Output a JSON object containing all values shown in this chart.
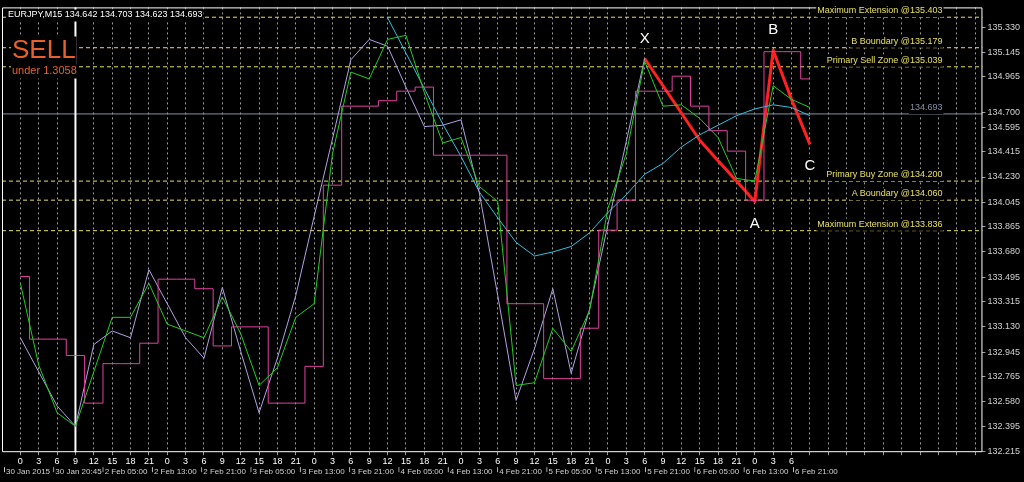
{
  "chart_data": {
    "type": "line",
    "title": "EURJPY,M15 134.642 134.703 134.623 134.693",
    "categories": [
      "0",
      "3",
      "6",
      "9",
      "12",
      "15",
      "18",
      "21",
      "0",
      "3",
      "6",
      "9",
      "12",
      "15",
      "18",
      "21",
      "0",
      "3",
      "6",
      "9",
      "12",
      "15",
      "18",
      "21",
      "0",
      "3",
      "6",
      "9",
      "12",
      "15",
      "18",
      "21",
      "0",
      "3",
      "6",
      "9",
      "12",
      "15",
      "18",
      "21",
      "0",
      "3",
      "6",
      null,
      null,
      null,
      null,
      null,
      null,
      null,
      null,
      null,
      null
    ],
    "ylim": [
      132.21,
      135.475
    ],
    "yticks": [
      {
        "value": 135.33,
        "label": "135.330"
      },
      {
        "value": 135.145,
        "label": "135.145"
      },
      {
        "value": 134.965,
        "label": "134.965"
      },
      {
        "value": 134.7,
        "label": "134.700"
      },
      {
        "value": 134.595,
        "label": "134.595"
      },
      {
        "value": 134.415,
        "label": "134.415"
      },
      {
        "value": 134.23,
        "label": "134.230"
      },
      {
        "value": 134.045,
        "label": "134.045"
      },
      {
        "value": 133.865,
        "label": "133.865"
      },
      {
        "value": 133.68,
        "label": "133.680"
      },
      {
        "value": 133.495,
        "label": "133.495"
      },
      {
        "value": 133.315,
        "label": "133.315"
      },
      {
        "value": 133.13,
        "label": "133.130"
      },
      {
        "value": 132.945,
        "label": "132.945"
      },
      {
        "value": 132.765,
        "label": "132.765"
      },
      {
        "value": 132.58,
        "label": "132.580"
      },
      {
        "value": 132.395,
        "label": "132.395"
      },
      {
        "value": 132.215,
        "label": "132.215"
      }
    ],
    "grid": "x",
    "legend": false,
    "series": [
      {
        "type": "line",
        "color": "#22cc22",
        "values": [
          133.45,
          132.85,
          132.5,
          132.4,
          132.8,
          133.2,
          133.2,
          133.45,
          133.15,
          133.1,
          133.05,
          133.35,
          133.08,
          132.7,
          132.83,
          133.2,
          133.3,
          134.4,
          135.0,
          134.95,
          135.24,
          135.27,
          134.85,
          134.48,
          134.52,
          134.16,
          134.05,
          132.7,
          132.72,
          133.12,
          132.95,
          133.25,
          134.0,
          134.4,
          135.08,
          134.75,
          134.76,
          134.66,
          134.52,
          134.22,
          134.2,
          134.9,
          134.8,
          134.74,
          null,
          null,
          null,
          null,
          null,
          null,
          null,
          null,
          null
        ]
      },
      {
        "type": "step",
        "color": "#e040a0",
        "values": [
          133.5,
          133.04,
          133.04,
          132.92,
          132.57,
          132.86,
          132.86,
          133.01,
          133.48,
          133.48,
          133.41,
          132.99,
          133.13,
          133.13,
          132.57,
          132.57,
          132.84,
          134.17,
          134.75,
          134.75,
          134.79,
          134.86,
          134.89,
          134.39,
          134.39,
          134.39,
          134.39,
          133.3,
          133.3,
          132.75,
          132.75,
          133.12,
          133.84,
          134.06,
          134.86,
          134.86,
          134.97,
          134.75,
          134.57,
          134.42,
          134.06,
          135.15,
          135.15,
          134.95,
          null,
          null,
          null,
          null,
          null,
          null,
          null,
          null,
          null
        ]
      },
      {
        "type": "line",
        "color": "#b0a0e0",
        "values": [
          133.05,
          132.8,
          132.55,
          132.4,
          133.0,
          133.1,
          133.05,
          133.55,
          133.3,
          133.05,
          132.9,
          133.42,
          132.95,
          132.5,
          132.9,
          133.36,
          133.94,
          134.51,
          135.09,
          135.24,
          135.19,
          134.89,
          134.6,
          134.61,
          134.65,
          134.11,
          133.36,
          132.59,
          132.97,
          133.41,
          132.79,
          133.26,
          133.88,
          134.49,
          135.1,
          null,
          null,
          null,
          null,
          null,
          null,
          null,
          null,
          null,
          null,
          null,
          null,
          null,
          null,
          null,
          null,
          null,
          null
        ]
      },
      {
        "type": "line",
        "color": "#30c0e0",
        "values": [
          null,
          null,
          null,
          null,
          null,
          null,
          null,
          null,
          null,
          null,
          null,
          null,
          null,
          null,
          null,
          null,
          null,
          null,
          null,
          null,
          135.4,
          135.14,
          134.88,
          134.62,
          134.38,
          134.12,
          133.93,
          133.75,
          133.65,
          133.68,
          133.72,
          133.82,
          133.97,
          134.1,
          134.25,
          134.33,
          134.45,
          134.54,
          134.61,
          134.68,
          134.73,
          134.76,
          134.74,
          134.68,
          null,
          null,
          null,
          null,
          null,
          null,
          null,
          null,
          null
        ]
      },
      {
        "type": "line",
        "color": "#ff2020",
        "values": [
          null,
          null,
          null,
          null,
          null,
          null,
          null,
          null,
          null,
          null,
          null,
          null,
          null,
          null,
          null,
          null,
          null,
          null,
          null,
          null,
          null,
          null,
          null,
          null,
          null,
          null,
          null,
          null,
          null,
          null,
          null,
          null,
          null,
          null,
          135.1,
          134.9,
          134.7,
          134.5,
          134.35,
          134.2,
          134.05,
          135.16,
          134.8,
          134.47,
          null,
          null,
          null,
          null,
          null,
          null,
          null,
          null,
          null
        ]
      }
    ],
    "ref_lines": [
      {
        "axis": "y",
        "value": 135.403,
        "label": "Maximum Extension @135.403",
        "color": "#e8e060",
        "line_style": "dashed"
      },
      {
        "axis": "y",
        "value": 135.179,
        "label": "B Boundary @135.179",
        "color": "#e8e060",
        "line_style": "dashed"
      },
      {
        "axis": "y",
        "value": 135.039,
        "label": "Primary Sell Zone @135.039",
        "color": "#e8e060",
        "line_style": "dashed"
      },
      {
        "axis": "y",
        "value": 134.2,
        "label": "Primary Buy Zone @134.200",
        "color": "#e8e060",
        "line_style": "dashed"
      },
      {
        "axis": "y",
        "value": 134.06,
        "label": "A Boundary @134.060",
        "color": "#e8e060",
        "line_style": "dashed"
      },
      {
        "axis": "y",
        "value": 133.836,
        "label": "Maximum Extension @133.836",
        "color": "#e8e060",
        "line_style": "dashed"
      },
      {
        "axis": "y",
        "value": 134.693,
        "label": "134.693",
        "color": "#8890a8",
        "line_style": "solid"
      },
      {
        "axis": "x",
        "value": "9",
        "color": "#ffffff",
        "line_style": "solid"
      }
    ],
    "annotations": [
      "SELL",
      "under 1.3058",
      "X",
      "A",
      "B",
      "C",
      "30 Jan 2015",
      "30 Jan 20:45",
      "2 Feb 05:00",
      "2 Feb 13:00",
      "2 Feb 21:00",
      "3 Feb 05:00",
      "3 Feb 13:00",
      "3 Feb 21:00",
      "4 Feb 05:00",
      "4 Feb 13:00",
      "4 Feb 21:00",
      "5 Feb 05:00",
      "5 Feb 13:00",
      "5 Feb 21:00",
      "6 Feb 05:00",
      "6 Feb 13:00",
      "6 Feb 21:00"
    ]
  }
}
